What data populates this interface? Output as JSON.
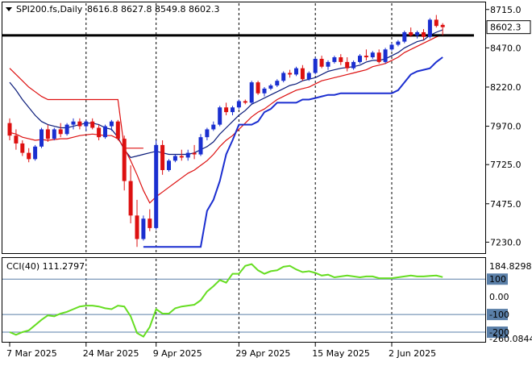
{
  "chart_data": [
    {
      "type": "candlestick",
      "header": {
        "symbol_label": "SPI200.fs,Daily",
        "ohlc_label": "8616.8 8627.8 8549.8 8602.3"
      },
      "price_tag": "8602.3",
      "y_ticks": [
        "8715.0",
        "8470.0",
        "8220.0",
        "7970.0",
        "7725.0",
        "7475.0",
        "7230.0"
      ],
      "y_tick_values": [
        8715,
        8470,
        8220,
        7970,
        7725,
        7475,
        7230
      ],
      "ylim": [
        7165,
        8755
      ],
      "x_ticks": [
        {
          "label": "7 Mar 2025",
          "index": 0
        },
        {
          "label": "24 Mar 2025",
          "index": 12
        },
        {
          "label": "9 Apr 2025",
          "index": 23
        },
        {
          "label": "29 Apr 2025",
          "index": 36
        },
        {
          "label": "15 May 2025",
          "index": 48
        },
        {
          "label": "2 Jun 2025",
          "index": 60
        }
      ],
      "candles": [
        [
          7990,
          8020,
          7880,
          7910
        ],
        [
          7910,
          7950,
          7820,
          7860
        ],
        [
          7860,
          7880,
          7780,
          7800
        ],
        [
          7800,
          7830,
          7740,
          7760
        ],
        [
          7760,
          7850,
          7750,
          7840
        ],
        [
          7840,
          7960,
          7830,
          7950
        ],
        [
          7950,
          7980,
          7870,
          7890
        ],
        [
          7890,
          7960,
          7880,
          7950
        ],
        [
          7950,
          7990,
          7900,
          7920
        ],
        [
          7920,
          7990,
          7910,
          7980
        ],
        [
          7980,
          8020,
          7950,
          8000
        ],
        [
          8000,
          8020,
          7950,
          7970
        ],
        [
          7970,
          8010,
          7940,
          8000
        ],
        [
          8000,
          8020,
          7950,
          7960
        ],
        [
          7960,
          7980,
          7880,
          7900
        ],
        [
          7900,
          7980,
          7890,
          7970
        ],
        [
          7970,
          8010,
          7940,
          8000
        ],
        [
          8000,
          8010,
          7880,
          7890
        ],
        [
          7890,
          7910,
          7560,
          7620
        ],
        [
          7620,
          7720,
          7350,
          7400
        ],
        [
          7400,
          7500,
          7200,
          7250
        ],
        [
          7250,
          7400,
          7240,
          7380
        ],
        [
          7380,
          7440,
          7300,
          7320
        ],
        [
          7320,
          7880,
          7310,
          7850
        ],
        [
          7850,
          7880,
          7660,
          7690
        ],
        [
          7690,
          7760,
          7680,
          7750
        ],
        [
          7750,
          7790,
          7740,
          7780
        ],
        [
          7780,
          7820,
          7750,
          7770
        ],
        [
          7770,
          7820,
          7750,
          7800
        ],
        [
          7800,
          7850,
          7760,
          7790
        ],
        [
          7790,
          7920,
          7780,
          7900
        ],
        [
          7900,
          7960,
          7880,
          7950
        ],
        [
          7950,
          8000,
          7940,
          7980
        ],
        [
          7980,
          8100,
          7970,
          8090
        ],
        [
          8090,
          8120,
          8040,
          8060
        ],
        [
          8060,
          8100,
          8040,
          8090
        ],
        [
          8090,
          8140,
          8080,
          8130
        ],
        [
          8130,
          8140,
          8110,
          8120
        ],
        [
          8120,
          8260,
          8110,
          8250
        ],
        [
          8250,
          8260,
          8170,
          8180
        ],
        [
          8180,
          8220,
          8160,
          8210
        ],
        [
          8210,
          8240,
          8200,
          8230
        ],
        [
          8230,
          8270,
          8220,
          8260
        ],
        [
          8260,
          8320,
          8250,
          8310
        ],
        [
          8310,
          8330,
          8280,
          8300
        ],
        [
          8300,
          8350,
          8290,
          8340
        ],
        [
          8340,
          8360,
          8260,
          8270
        ],
        [
          8270,
          8320,
          8260,
          8310
        ],
        [
          8310,
          8410,
          8300,
          8400
        ],
        [
          8400,
          8420,
          8340,
          8350
        ],
        [
          8350,
          8390,
          8330,
          8380
        ],
        [
          8380,
          8420,
          8370,
          8410
        ],
        [
          8410,
          8430,
          8360,
          8380
        ],
        [
          8380,
          8410,
          8320,
          8340
        ],
        [
          8340,
          8390,
          8330,
          8380
        ],
        [
          8380,
          8430,
          8370,
          8420
        ],
        [
          8420,
          8460,
          8390,
          8410
        ],
        [
          8410,
          8450,
          8400,
          8440
        ],
        [
          8440,
          8460,
          8370,
          8380
        ],
        [
          8380,
          8470,
          8370,
          8460
        ],
        [
          8460,
          8500,
          8450,
          8490
        ],
        [
          8490,
          8520,
          8480,
          8510
        ],
        [
          8510,
          8580,
          8500,
          8570
        ],
        [
          8570,
          8600,
          8540,
          8550
        ],
        [
          8550,
          8580,
          8530,
          8570
        ],
        [
          8570,
          8590,
          8520,
          8540
        ],
        [
          8540,
          8660,
          8530,
          8650
        ],
        [
          8650,
          8680,
          8600,
          8610
        ],
        [
          8616.8,
          8627.8,
          8549.8,
          8602.3
        ]
      ],
      "horizontal_line": 8550,
      "lines": [
        {
          "color": "#0b1c7a",
          "values": [
            8250,
            8200,
            8140,
            8090,
            8040,
            8000,
            7980,
            7970,
            7960,
            7960,
            7970,
            7980,
            7990,
            7990,
            7980,
            7960,
            7950,
            7900,
            7820,
            7770,
            7780,
            7790,
            7800,
            7810,
            7800,
            7790,
            7790,
            7790,
            7790,
            7800,
            7820,
            7840,
            7870,
            7920,
            7960,
            8000,
            8040,
            8070,
            8110,
            8130,
            8150,
            8170,
            8190,
            8210,
            8230,
            8240,
            8260,
            8270,
            8280,
            8300,
            8320,
            8330,
            8340,
            8345,
            8350,
            8360,
            8380,
            8390,
            8390,
            8400,
            8420,
            8440,
            8470,
            8490,
            8510,
            8520,
            8550,
            8570,
            8585
          ]
        },
        {
          "color": "#dd1010",
          "values": [
            7930,
            7920,
            7900,
            7890,
            7880,
            7885,
            7880,
            7885,
            7890,
            7890,
            7900,
            7910,
            7915,
            7920,
            7915,
            7910,
            7910,
            7890,
            7830,
            7750,
            7660,
            7560,
            7480,
            7520,
            7550,
            7580,
            7610,
            7640,
            7670,
            7690,
            7720,
            7750,
            7790,
            7840,
            7880,
            7910,
            7950,
            7990,
            8030,
            8060,
            8080,
            8110,
            8140,
            8160,
            8180,
            8200,
            8210,
            8220,
            8240,
            8260,
            8270,
            8280,
            8290,
            8300,
            8310,
            8320,
            8330,
            8350,
            8360,
            8370,
            8390,
            8410,
            8440,
            8460,
            8480,
            8500,
            8520,
            8540,
            8555
          ]
        },
        {
          "color": "#dd1010",
          "values": [
            8340,
            8300,
            8260,
            8220,
            8190,
            8160,
            8140,
            8140,
            8140,
            8140,
            8140,
            8140,
            8140,
            8140,
            8140,
            8140,
            8140,
            8140,
            7830,
            7830,
            7830,
            7830,
            null,
            null,
            null,
            null,
            null,
            null,
            null,
            null,
            null,
            null,
            null,
            null,
            null,
            null,
            null,
            null,
            null,
            null,
            null,
            null,
            null,
            null,
            null,
            null,
            null,
            null,
            null,
            null,
            null,
            null,
            null,
            null,
            null,
            null,
            null,
            null,
            null,
            null,
            null,
            null,
            null,
            null,
            null,
            null,
            null,
            null,
            null
          ]
        },
        {
          "color": "#1b2ed0",
          "values": [
            null,
            null,
            null,
            null,
            null,
            null,
            null,
            null,
            null,
            null,
            null,
            null,
            null,
            null,
            null,
            null,
            null,
            null,
            null,
            null,
            null,
            7200,
            7200,
            7200,
            7200,
            7200,
            7200,
            7200,
            7200,
            7200,
            7200,
            7430,
            7500,
            7620,
            7790,
            7880,
            7980,
            7980,
            7980,
            8000,
            8060,
            8080,
            8120,
            8120,
            8120,
            8120,
            8140,
            8140,
            8150,
            8160,
            8170,
            8170,
            8180,
            8180,
            8180,
            8180,
            8180,
            8180,
            8180,
            8180,
            8180,
            8200,
            8250,
            8300,
            8320,
            8330,
            8340,
            8380,
            8410
          ]
        }
      ]
    },
    {
      "type": "line",
      "label": "CCI(40) 111.2797",
      "ylim": [
        -250,
        215
      ],
      "y_ticks": [
        "184.8298",
        "100",
        "0.00",
        "-100",
        "-200",
        "-260.0844"
      ],
      "y_tick_values": [
        184.8298,
        100,
        0,
        -100,
        -200,
        -260.0844
      ],
      "highlighted_ticks": [
        "100",
        "-100",
        "-200"
      ],
      "levels": [
        100,
        -100,
        -200
      ],
      "series": [
        {
          "color": "#66dd22",
          "values": [
            -200,
            -215,
            -200,
            -190,
            -160,
            -130,
            -105,
            -110,
            -95,
            -85,
            -70,
            -55,
            -50,
            -50,
            -55,
            -65,
            -70,
            -50,
            -55,
            -110,
            -205,
            -225,
            -170,
            -70,
            -95,
            -95,
            -65,
            -55,
            -50,
            -45,
            -20,
            30,
            60,
            95,
            80,
            130,
            130,
            175,
            185,
            150,
            130,
            145,
            150,
            170,
            175,
            155,
            140,
            145,
            135,
            120,
            125,
            110,
            115,
            120,
            115,
            110,
            115,
            115,
            105,
            105,
            105,
            110,
            115,
            120,
            115,
            115,
            118,
            120,
            111.3
          ]
        }
      ]
    }
  ]
}
